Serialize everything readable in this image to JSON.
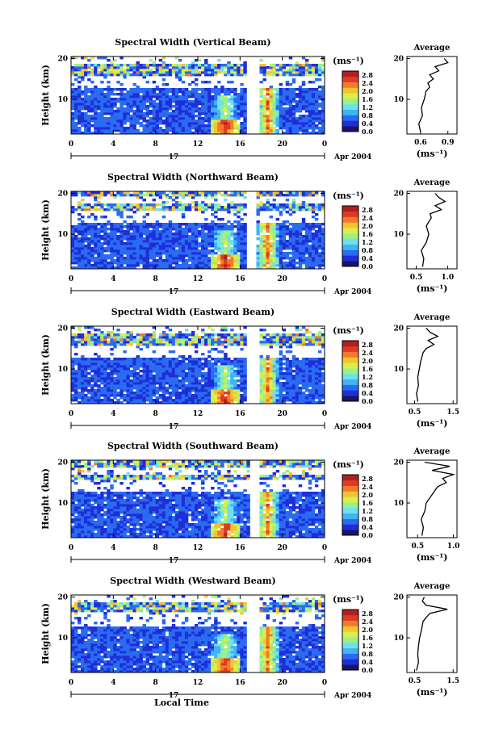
{
  "figure": {
    "xlabel": "Local Time",
    "ylabel": "Height (km)",
    "day_label": "17",
    "date_label": "Apr 2004",
    "units_label": "(ms⁻¹)",
    "avg_title": "Average",
    "colors": {
      "scale": [
        "#1a1466",
        "#1e2ed9",
        "#2a6bf0",
        "#3fb5f5",
        "#6fe0ef",
        "#9cf08a",
        "#d9f04a",
        "#f5c233",
        "#f27a2a",
        "#e03a22",
        "#b01f1f"
      ],
      "background": "#ffffff",
      "line": "#000000"
    }
  },
  "chart_data": [
    {
      "type": "heatmap",
      "title": "Spectral Width (Vertical Beam)",
      "xlabel": "Local Time",
      "ylabel": "Height (km)",
      "x_ticks": [
        "0",
        "4",
        "8",
        "12",
        "16",
        "20",
        "0"
      ],
      "x_range": [
        0,
        24
      ],
      "y_ticks": [
        "10",
        "20"
      ],
      "y_range": [
        1.5,
        20.5
      ],
      "colorbar": {
        "labels": [
          "0.0",
          "0.4",
          "0.8",
          "1.2",
          "1.6",
          "2.0",
          "2.4",
          "2.8"
        ],
        "range": [
          0,
          3.0
        ]
      },
      "data_gap_hours": [
        16.6,
        17.7
      ],
      "blank_height_km": [
        [
          19.0,
          20.5
        ],
        [
          12.5,
          16.0
        ]
      ],
      "average_profile": {
        "x_ticks": [
          "0.6",
          "0.9"
        ],
        "x_range": [
          0.45,
          1.0
        ],
        "height_km": [
          2,
          4,
          6,
          8,
          10,
          12,
          13,
          14,
          15,
          16,
          17,
          18,
          19,
          20
        ],
        "width": [
          0.6,
          0.58,
          0.62,
          0.61,
          0.64,
          0.66,
          0.7,
          0.68,
          0.74,
          0.7,
          0.8,
          0.76,
          0.9,
          0.86
        ]
      }
    },
    {
      "type": "heatmap",
      "title": "Spectral Width (Northward Beam)",
      "xlabel": "Local Time",
      "ylabel": "Height (km)",
      "x_ticks": [
        "0",
        "4",
        "8",
        "12",
        "16",
        "20",
        "0"
      ],
      "x_range": [
        0,
        24
      ],
      "y_ticks": [
        "10",
        "20"
      ],
      "y_range": [
        1.5,
        20.5
      ],
      "colorbar": {
        "labels": [
          "0.0",
          "0.4",
          "0.8",
          "1.2",
          "1.6",
          "2.0",
          "2.4",
          "2.8"
        ],
        "range": [
          0,
          3.0
        ]
      },
      "data_gap_hours": [
        16.6,
        17.5
      ],
      "blank_height_km": [
        [
          17.5,
          19.5
        ],
        [
          13.0,
          15.5
        ]
      ],
      "average_profile": {
        "x_ticks": [
          "0.5",
          "1.0"
        ],
        "x_range": [
          0.35,
          1.15
        ],
        "height_km": [
          2,
          4,
          6,
          8,
          10,
          12,
          14,
          15,
          16,
          17,
          18,
          19,
          20
        ],
        "width": [
          0.6,
          0.62,
          0.58,
          0.66,
          0.7,
          0.66,
          0.74,
          0.72,
          0.9,
          0.8,
          0.96,
          0.86,
          0.8
        ]
      }
    },
    {
      "type": "heatmap",
      "title": "Spectral Width (Eastward Beam)",
      "xlabel": "Local Time",
      "ylabel": "Height (km)",
      "x_ticks": [
        "0",
        "4",
        "8",
        "12",
        "16",
        "20",
        "0"
      ],
      "x_range": [
        0,
        24
      ],
      "y_ticks": [
        "10",
        "20"
      ],
      "y_range": [
        1.5,
        20.5
      ],
      "colorbar": {
        "labels": [
          "0.0",
          "0.4",
          "0.8",
          "1.2",
          "1.6",
          "2.0",
          "2.4",
          "2.8"
        ],
        "range": [
          0,
          3.0
        ]
      },
      "data_gap_hours": [
        16.6,
        17.9
      ],
      "blank_height_km": [
        [
          18.5,
          20.5
        ],
        [
          13.0,
          16.0
        ]
      ],
      "average_profile": {
        "x_ticks": [
          "0.5",
          "1.5"
        ],
        "x_range": [
          0.3,
          1.6
        ],
        "height_km": [
          2,
          4,
          6,
          8,
          10,
          12,
          14,
          15,
          16,
          17,
          18,
          19,
          20
        ],
        "width": [
          0.58,
          0.55,
          0.6,
          0.58,
          0.62,
          0.66,
          0.72,
          0.8,
          1.0,
          0.85,
          1.1,
          0.9,
          0.8
        ]
      }
    },
    {
      "type": "heatmap",
      "title": "Spectral Width (Southward Beam)",
      "xlabel": "Local Time",
      "ylabel": "Height (km)",
      "x_ticks": [
        "0",
        "4",
        "8",
        "12",
        "16",
        "20",
        "0"
      ],
      "x_range": [
        0,
        24
      ],
      "y_ticks": [
        "10",
        "20"
      ],
      "y_range": [
        1.5,
        20.5
      ],
      "colorbar": {
        "labels": [
          "0.0",
          "0.4",
          "0.8",
          "1.2",
          "1.6",
          "2.0",
          "2.4",
          "2.8"
        ],
        "range": [
          0,
          3.0
        ]
      },
      "data_gap_hours": [
        17.0,
        17.8
      ],
      "blank_height_km": [
        [
          17.0,
          18.5
        ],
        [
          12.5,
          16.0
        ]
      ],
      "average_profile": {
        "x_ticks": [
          "0.5",
          "1.0"
        ],
        "x_range": [
          0.35,
          1.05
        ],
        "height_km": [
          2,
          4,
          6,
          8,
          10,
          12,
          14,
          15,
          16,
          17,
          18,
          19,
          20
        ],
        "width": [
          0.56,
          0.58,
          0.55,
          0.6,
          0.62,
          0.7,
          0.78,
          0.9,
          0.85,
          1.0,
          0.7,
          0.95,
          0.6
        ]
      }
    },
    {
      "type": "heatmap",
      "title": "Spectral Width (Westward Beam)",
      "xlabel": "Local Time",
      "ylabel": "Height (km)",
      "x_ticks": [
        "0",
        "4",
        "8",
        "12",
        "16",
        "20",
        "0"
      ],
      "x_range": [
        0,
        24
      ],
      "y_ticks": [
        "10",
        "20"
      ],
      "y_range": [
        1.5,
        20.5
      ],
      "colorbar": {
        "labels": [
          "0.0",
          "0.4",
          "0.8",
          "1.2",
          "1.6",
          "2.0",
          "2.4",
          "2.8"
        ],
        "range": [
          0,
          3.0
        ]
      },
      "data_gap_hours": [
        16.6,
        17.8
      ],
      "blank_height_km": [
        [
          18.5,
          20.5
        ],
        [
          13.0,
          16.5
        ]
      ],
      "average_profile": {
        "x_ticks": [
          "0.5",
          "1.5"
        ],
        "x_range": [
          0.3,
          1.6
        ],
        "height_km": [
          2,
          4,
          6,
          8,
          10,
          12,
          14,
          15,
          16,
          17,
          18,
          19,
          20
        ],
        "width": [
          0.55,
          0.6,
          0.58,
          0.6,
          0.63,
          0.68,
          0.72,
          0.8,
          0.9,
          1.35,
          0.8,
          0.7,
          0.75
        ]
      }
    }
  ]
}
